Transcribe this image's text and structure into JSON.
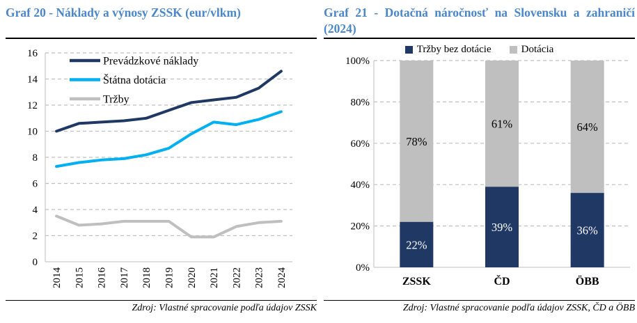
{
  "page": {
    "background": "#FFFFFF"
  },
  "colors": {
    "title_blue": "#4A86C8",
    "navy": "#1F3864",
    "cyan": "#00B0F0",
    "gray": "#BFBFBF",
    "axis_line": "#C9C9C9",
    "gridline": "#BFBFBF",
    "rule_black": "#000000"
  },
  "left_panel": {
    "title": "Graf 20 - Náklady a výnosy ZSSK (eur/vlkm)",
    "source": "Zdroj: Vlastné spracovanie podľa údajov ZSSK"
  },
  "right_panel": {
    "title": "Graf 21 - Dotačná náročnosť na Slovensku a zahraničí (2024)",
    "source": "Zdroj: Vlastné spracovanie podľa údajov ZSSK, ČD a ÖBB"
  },
  "chart_data": [
    {
      "type": "line",
      "title": "Graf 20 - Náklady a výnosy ZSSK (eur/vlkm)",
      "categories": [
        "2014",
        "2015",
        "2016",
        "2017",
        "2018",
        "2019",
        "2020",
        "2021",
        "2022",
        "2023",
        "2024"
      ],
      "series": [
        {
          "name": "Prevádzkové náklady",
          "color": "#1F3864",
          "values": [
            10.0,
            10.6,
            10.7,
            10.8,
            11.0,
            11.6,
            12.2,
            12.4,
            12.6,
            13.3,
            14.6
          ]
        },
        {
          "name": "Štátna dotácia",
          "color": "#00B0F0",
          "values": [
            7.3,
            7.6,
            7.8,
            7.9,
            8.2,
            8.7,
            9.8,
            10.7,
            10.5,
            10.9,
            11.5
          ]
        },
        {
          "name": "Tržby",
          "color": "#BFBFBF",
          "values": [
            3.5,
            2.8,
            2.9,
            3.1,
            3.1,
            3.1,
            1.9,
            1.9,
            2.7,
            3.0,
            3.1
          ]
        }
      ],
      "ylim": [
        0,
        16
      ],
      "ytick_step": 2,
      "grid": "horizontal-dashed",
      "legend_position": "inside-top-left",
      "x_label_rotation": -90
    },
    {
      "type": "bar",
      "stacked": true,
      "unit": "%",
      "title": "Graf 21 - Dotačná náročnosť na Slovensku a zahraničí (2024)",
      "categories": [
        "ZSSK",
        "ČD",
        "ÖBB"
      ],
      "series": [
        {
          "name": "Tržby bez dotácie",
          "color": "#1F3864",
          "label_color": "#FFFFFF",
          "values": [
            22,
            39,
            36
          ]
        },
        {
          "name": "Dotácia",
          "color": "#BFBFBF",
          "label_color": "#000000",
          "values": [
            78,
            61,
            64
          ]
        }
      ],
      "bar_labels": [
        "22%",
        "39%",
        "36%",
        "78%",
        "61%",
        "64%"
      ],
      "ytick_labels": [
        "0%",
        "20%",
        "40%",
        "60%",
        "80%",
        "100%"
      ],
      "ylim": [
        0,
        100
      ],
      "ytick_step": 20,
      "grid": "horizontal-dashed",
      "legend_position": "top-center"
    }
  ]
}
